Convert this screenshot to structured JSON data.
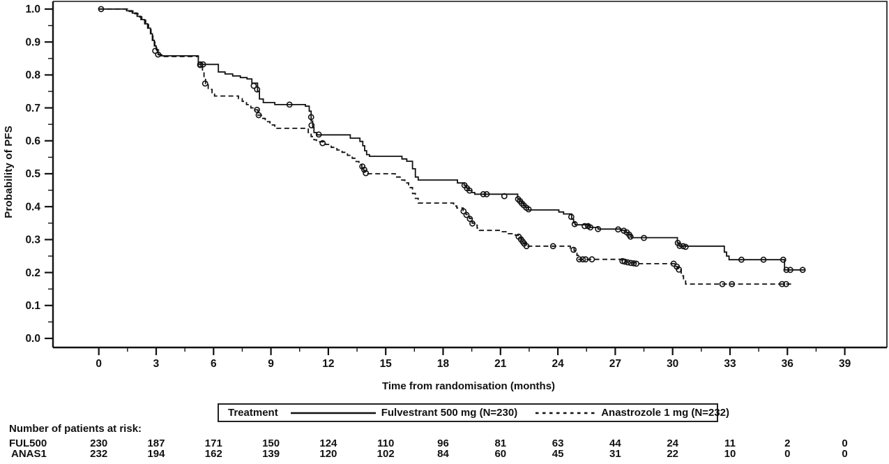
{
  "figure": {
    "bg": "#ffffff",
    "line_color": "#111111"
  },
  "chart_data": {
    "type": "line",
    "subtype": "kaplan_meier_step",
    "title": "",
    "xlabel": "Time from randomisation (months)",
    "ylabel": "Probability of PFS",
    "xlim": [
      0,
      39
    ],
    "ylim": [
      0.0,
      1.0
    ],
    "grid": false,
    "xticks": [
      0,
      3,
      6,
      9,
      12,
      15,
      18,
      21,
      24,
      27,
      30,
      33,
      36,
      39
    ],
    "yticks": [
      "0.0",
      "0.1",
      "0.2",
      "0.3",
      "0.4",
      "0.5",
      "0.6",
      "0.7",
      "0.8",
      "0.9",
      "1.0"
    ],
    "legend": {
      "title": "Treatment",
      "position": "bottom",
      "entries": [
        {
          "label": "Fulvestrant 500 mg (N=230)",
          "style": "solid"
        },
        {
          "label": "Anastrozole 1 mg (N=232)",
          "style": "dashed"
        }
      ]
    },
    "series": [
      {
        "name": "Fulvestrant 500 mg",
        "style": "solid",
        "end_time": 36.9,
        "steps": [
          [
            0,
            1.0
          ],
          [
            1.45,
            0.995
          ],
          [
            1.75,
            0.988
          ],
          [
            2.0,
            0.978
          ],
          [
            2.2,
            0.968
          ],
          [
            2.4,
            0.955
          ],
          [
            2.55,
            0.942
          ],
          [
            2.7,
            0.925
          ],
          [
            2.8,
            0.905
          ],
          [
            2.9,
            0.888
          ],
          [
            3.0,
            0.877
          ],
          [
            3.1,
            0.862
          ],
          [
            3.25,
            0.858
          ],
          [
            5.2,
            0.832
          ],
          [
            6.25,
            0.809
          ],
          [
            6.6,
            0.803
          ],
          [
            7.0,
            0.797
          ],
          [
            7.4,
            0.792
          ],
          [
            7.75,
            0.788
          ],
          [
            8.0,
            0.775
          ],
          [
            8.3,
            0.75
          ],
          [
            8.4,
            0.727
          ],
          [
            8.6,
            0.716
          ],
          [
            9.2,
            0.71
          ],
          [
            10.8,
            0.705
          ],
          [
            11.0,
            0.69
          ],
          [
            11.1,
            0.66
          ],
          [
            11.18,
            0.64
          ],
          [
            11.25,
            0.625
          ],
          [
            11.4,
            0.618
          ],
          [
            13.15,
            0.608
          ],
          [
            13.65,
            0.598
          ],
          [
            13.8,
            0.585
          ],
          [
            13.9,
            0.57
          ],
          [
            14.0,
            0.558
          ],
          [
            14.15,
            0.553
          ],
          [
            15.85,
            0.545
          ],
          [
            16.1,
            0.538
          ],
          [
            16.4,
            0.515
          ],
          [
            16.55,
            0.49
          ],
          [
            16.7,
            0.481
          ],
          [
            18.75,
            0.472
          ],
          [
            19.1,
            0.465
          ],
          [
            19.22,
            0.457
          ],
          [
            19.35,
            0.449
          ],
          [
            19.5,
            0.443
          ],
          [
            19.65,
            0.438
          ],
          [
            21.9,
            0.424
          ],
          [
            22.0,
            0.417
          ],
          [
            22.1,
            0.411
          ],
          [
            22.2,
            0.404
          ],
          [
            22.32,
            0.398
          ],
          [
            22.45,
            0.39
          ],
          [
            24.05,
            0.384
          ],
          [
            24.3,
            0.378
          ],
          [
            24.72,
            0.362
          ],
          [
            24.82,
            0.351
          ],
          [
            24.9,
            0.345
          ],
          [
            25.65,
            0.337
          ],
          [
            26.1,
            0.332
          ],
          [
            27.3,
            0.328
          ],
          [
            27.55,
            0.322
          ],
          [
            27.7,
            0.314
          ],
          [
            27.85,
            0.306
          ],
          [
            30.25,
            0.29
          ],
          [
            30.35,
            0.28
          ],
          [
            32.7,
            0.262
          ],
          [
            32.82,
            0.25
          ],
          [
            32.95,
            0.239
          ],
          [
            35.85,
            0.208
          ]
        ],
        "censors": [
          [
            0.12,
            1.0
          ],
          [
            2.95,
            0.873
          ],
          [
            3.1,
            0.862
          ],
          [
            5.3,
            0.832
          ],
          [
            5.45,
            0.832
          ],
          [
            8.1,
            0.767
          ],
          [
            8.28,
            0.756
          ],
          [
            9.97,
            0.71
          ],
          [
            11.1,
            0.672
          ],
          [
            11.12,
            0.647
          ],
          [
            11.5,
            0.619
          ],
          [
            19.12,
            0.465
          ],
          [
            19.25,
            0.456
          ],
          [
            19.38,
            0.449
          ],
          [
            20.1,
            0.438
          ],
          [
            20.28,
            0.438
          ],
          [
            21.2,
            0.432
          ],
          [
            21.92,
            0.423
          ],
          [
            22.02,
            0.417
          ],
          [
            22.12,
            0.41
          ],
          [
            22.22,
            0.404
          ],
          [
            22.35,
            0.397
          ],
          [
            22.47,
            0.392
          ],
          [
            24.7,
            0.369
          ],
          [
            24.88,
            0.347
          ],
          [
            25.4,
            0.341
          ],
          [
            25.58,
            0.341
          ],
          [
            25.7,
            0.337
          ],
          [
            26.1,
            0.332
          ],
          [
            27.15,
            0.331
          ],
          [
            27.45,
            0.327
          ],
          [
            27.6,
            0.322
          ],
          [
            27.73,
            0.315
          ],
          [
            27.8,
            0.309
          ],
          [
            28.5,
            0.305
          ],
          [
            30.27,
            0.29
          ],
          [
            30.37,
            0.281
          ],
          [
            30.55,
            0.28
          ],
          [
            30.68,
            0.278
          ],
          [
            33.6,
            0.239
          ],
          [
            34.75,
            0.239
          ],
          [
            35.78,
            0.239
          ],
          [
            35.95,
            0.208
          ],
          [
            36.15,
            0.208
          ],
          [
            36.8,
            0.208
          ]
        ]
      },
      {
        "name": "Anastrozole 1 mg",
        "style": "dashed",
        "end_time": 36.2,
        "steps": [
          [
            0,
            1.0
          ],
          [
            1.5,
            0.993
          ],
          [
            1.8,
            0.986
          ],
          [
            2.05,
            0.976
          ],
          [
            2.25,
            0.966
          ],
          [
            2.45,
            0.953
          ],
          [
            2.6,
            0.94
          ],
          [
            2.73,
            0.922
          ],
          [
            2.83,
            0.903
          ],
          [
            2.93,
            0.886
          ],
          [
            3.03,
            0.875
          ],
          [
            3.13,
            0.861
          ],
          [
            3.3,
            0.856
          ],
          [
            5.2,
            0.832
          ],
          [
            5.42,
            0.81
          ],
          [
            5.5,
            0.79
          ],
          [
            5.58,
            0.774
          ],
          [
            5.72,
            0.756
          ],
          [
            5.92,
            0.742
          ],
          [
            6.05,
            0.736
          ],
          [
            7.3,
            0.728
          ],
          [
            7.5,
            0.72
          ],
          [
            7.72,
            0.71
          ],
          [
            7.95,
            0.7
          ],
          [
            8.15,
            0.694
          ],
          [
            8.32,
            0.678
          ],
          [
            8.5,
            0.668
          ],
          [
            8.7,
            0.658
          ],
          [
            8.95,
            0.648
          ],
          [
            9.2,
            0.638
          ],
          [
            10.95,
            0.625
          ],
          [
            11.1,
            0.613
          ],
          [
            11.25,
            0.603
          ],
          [
            11.38,
            0.597
          ],
          [
            11.85,
            0.589
          ],
          [
            12.15,
            0.58
          ],
          [
            12.45,
            0.572
          ],
          [
            12.72,
            0.565
          ],
          [
            13.0,
            0.556
          ],
          [
            13.25,
            0.547
          ],
          [
            13.45,
            0.537
          ],
          [
            13.6,
            0.528
          ],
          [
            13.75,
            0.519
          ],
          [
            13.85,
            0.51
          ],
          [
            13.95,
            0.5
          ],
          [
            15.5,
            0.49
          ],
          [
            15.75,
            0.481
          ],
          [
            16.0,
            0.472
          ],
          [
            16.2,
            0.458
          ],
          [
            16.4,
            0.44
          ],
          [
            16.55,
            0.425
          ],
          [
            16.7,
            0.411
          ],
          [
            18.55,
            0.402
          ],
          [
            18.72,
            0.396
          ],
          [
            19.05,
            0.388
          ],
          [
            19.2,
            0.376
          ],
          [
            19.38,
            0.364
          ],
          [
            19.52,
            0.35
          ],
          [
            19.65,
            0.344
          ],
          [
            19.78,
            0.335
          ],
          [
            19.9,
            0.328
          ],
          [
            21.1,
            0.324
          ],
          [
            21.38,
            0.318
          ],
          [
            21.78,
            0.313
          ],
          [
            21.98,
            0.306
          ],
          [
            22.1,
            0.298
          ],
          [
            22.2,
            0.29
          ],
          [
            22.32,
            0.28
          ],
          [
            24.65,
            0.274
          ],
          [
            24.85,
            0.266
          ],
          [
            25.0,
            0.252
          ],
          [
            25.08,
            0.24
          ],
          [
            27.35,
            0.236
          ],
          [
            27.55,
            0.232
          ],
          [
            27.8,
            0.229
          ],
          [
            28.05,
            0.227
          ],
          [
            30.1,
            0.218
          ],
          [
            30.28,
            0.208
          ],
          [
            30.45,
            0.19
          ],
          [
            30.57,
            0.176
          ],
          [
            30.68,
            0.165
          ]
        ],
        "censors": [
          [
            5.3,
            0.83
          ],
          [
            5.56,
            0.774
          ],
          [
            8.27,
            0.694
          ],
          [
            8.36,
            0.678
          ],
          [
            11.7,
            0.593
          ],
          [
            13.78,
            0.522
          ],
          [
            13.88,
            0.512
          ],
          [
            13.96,
            0.502
          ],
          [
            19.07,
            0.386
          ],
          [
            19.22,
            0.375
          ],
          [
            19.4,
            0.363
          ],
          [
            19.53,
            0.349
          ],
          [
            21.95,
            0.309
          ],
          [
            22.07,
            0.301
          ],
          [
            22.16,
            0.294
          ],
          [
            22.24,
            0.288
          ],
          [
            22.36,
            0.28
          ],
          [
            23.75,
            0.28
          ],
          [
            24.82,
            0.269
          ],
          [
            25.12,
            0.24
          ],
          [
            25.3,
            0.24
          ],
          [
            25.45,
            0.24
          ],
          [
            25.78,
            0.24
          ],
          [
            27.38,
            0.235
          ],
          [
            27.5,
            0.233
          ],
          [
            27.65,
            0.231
          ],
          [
            27.82,
            0.229
          ],
          [
            27.97,
            0.228
          ],
          [
            28.1,
            0.227
          ],
          [
            30.05,
            0.227
          ],
          [
            30.22,
            0.218
          ],
          [
            30.33,
            0.209
          ],
          [
            32.6,
            0.165
          ],
          [
            33.1,
            0.165
          ],
          [
            35.72,
            0.165
          ],
          [
            35.93,
            0.165
          ]
        ]
      }
    ],
    "risk_table": {
      "title": "Number of patients at risk:",
      "time_points": [
        0,
        3,
        6,
        9,
        12,
        15,
        18,
        21,
        24,
        27,
        30,
        33,
        36,
        39
      ],
      "rows": [
        {
          "label": "FUL500",
          "values": [
            230,
            187,
            171,
            150,
            124,
            110,
            96,
            81,
            63,
            44,
            24,
            11,
            2,
            0
          ]
        },
        {
          "label": "ANAS1",
          "values": [
            232,
            194,
            162,
            139,
            120,
            102,
            84,
            60,
            45,
            31,
            22,
            10,
            0,
            0
          ]
        }
      ]
    }
  }
}
